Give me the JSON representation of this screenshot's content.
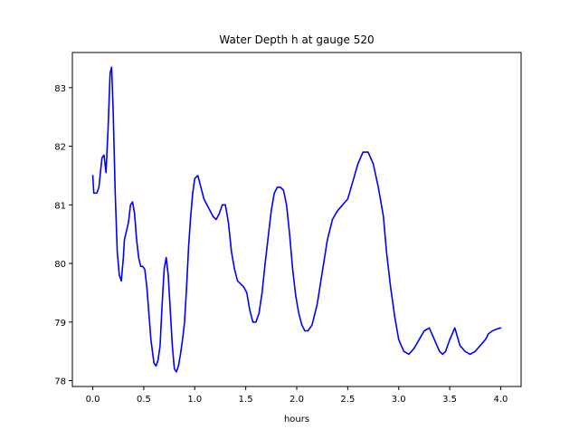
{
  "chart_data": {
    "type": "line",
    "title": "Water Depth h at gauge 520",
    "xlabel": "hours",
    "ylabel": "",
    "xlim": [
      -0.2,
      4.2
    ],
    "ylim": [
      77.9,
      83.6
    ],
    "xticks": [
      0.0,
      0.5,
      1.0,
      1.5,
      2.0,
      2.5,
      3.0,
      3.5,
      4.0
    ],
    "xtick_labels": [
      "0.0",
      "0.5",
      "1.0",
      "1.5",
      "2.0",
      "2.5",
      "3.0",
      "3.5",
      "4.0"
    ],
    "yticks": [
      78,
      79,
      80,
      81,
      82,
      83
    ],
    "ytick_labels": [
      "78",
      "79",
      "80",
      "81",
      "82",
      "83"
    ],
    "grid": false,
    "legend": "none",
    "series": [
      {
        "color": "#0000ff",
        "x": [
          0.0,
          0.01,
          0.04,
          0.06,
          0.09,
          0.11,
          0.13,
          0.15,
          0.17,
          0.185,
          0.2,
          0.22,
          0.24,
          0.26,
          0.28,
          0.3,
          0.31,
          0.33,
          0.35,
          0.37,
          0.39,
          0.41,
          0.43,
          0.45,
          0.47,
          0.49,
          0.51,
          0.53,
          0.55,
          0.57,
          0.6,
          0.62,
          0.64,
          0.66,
          0.68,
          0.7,
          0.72,
          0.74,
          0.76,
          0.78,
          0.8,
          0.82,
          0.84,
          0.86,
          0.88,
          0.9,
          0.92,
          0.94,
          0.96,
          0.98,
          1.0,
          1.03,
          1.06,
          1.09,
          1.12,
          1.15,
          1.18,
          1.21,
          1.24,
          1.27,
          1.3,
          1.33,
          1.36,
          1.39,
          1.42,
          1.45,
          1.48,
          1.51,
          1.54,
          1.57,
          1.6,
          1.63,
          1.66,
          1.69,
          1.72,
          1.75,
          1.78,
          1.81,
          1.84,
          1.87,
          1.9,
          1.93,
          1.96,
          1.99,
          2.02,
          2.05,
          2.08,
          2.11,
          2.15,
          2.2,
          2.25,
          2.3,
          2.35,
          2.4,
          2.45,
          2.5,
          2.55,
          2.6,
          2.65,
          2.7,
          2.75,
          2.8,
          2.85,
          2.88,
          2.92,
          2.96,
          3.0,
          3.05,
          3.1,
          3.15,
          3.2,
          3.25,
          3.3,
          3.35,
          3.4,
          3.43,
          3.46,
          3.5,
          3.55,
          3.6,
          3.65,
          3.7,
          3.75,
          3.8,
          3.85,
          3.88,
          3.92,
          3.96,
          4.0
        ],
        "y": [
          81.5,
          81.2,
          81.2,
          81.3,
          81.8,
          81.85,
          81.55,
          82.3,
          83.25,
          83.35,
          82.6,
          81.2,
          80.2,
          79.8,
          79.7,
          80.1,
          80.4,
          80.55,
          80.7,
          81.0,
          81.05,
          80.85,
          80.4,
          80.1,
          79.95,
          79.95,
          79.9,
          79.6,
          79.15,
          78.7,
          78.3,
          78.25,
          78.35,
          78.6,
          79.3,
          79.9,
          80.1,
          79.8,
          79.2,
          78.6,
          78.2,
          78.15,
          78.25,
          78.45,
          78.7,
          79.0,
          79.6,
          80.3,
          80.8,
          81.2,
          81.45,
          81.5,
          81.3,
          81.1,
          81.0,
          80.9,
          80.8,
          80.75,
          80.85,
          81.0,
          81.0,
          80.7,
          80.2,
          79.9,
          79.7,
          79.65,
          79.6,
          79.5,
          79.2,
          79.0,
          79.0,
          79.15,
          79.5,
          80.0,
          80.45,
          80.9,
          81.2,
          81.3,
          81.3,
          81.25,
          81.0,
          80.5,
          79.9,
          79.45,
          79.15,
          78.95,
          78.85,
          78.85,
          78.95,
          79.3,
          79.85,
          80.4,
          80.75,
          80.9,
          81.0,
          81.1,
          81.4,
          81.7,
          81.9,
          81.9,
          81.7,
          81.3,
          80.8,
          80.2,
          79.6,
          79.1,
          78.7,
          78.5,
          78.45,
          78.55,
          78.7,
          78.85,
          78.9,
          78.7,
          78.5,
          78.45,
          78.5,
          78.7,
          78.9,
          78.6,
          78.5,
          78.45,
          78.5,
          78.6,
          78.7,
          78.8,
          78.85,
          78.88,
          78.9
        ]
      }
    ]
  }
}
